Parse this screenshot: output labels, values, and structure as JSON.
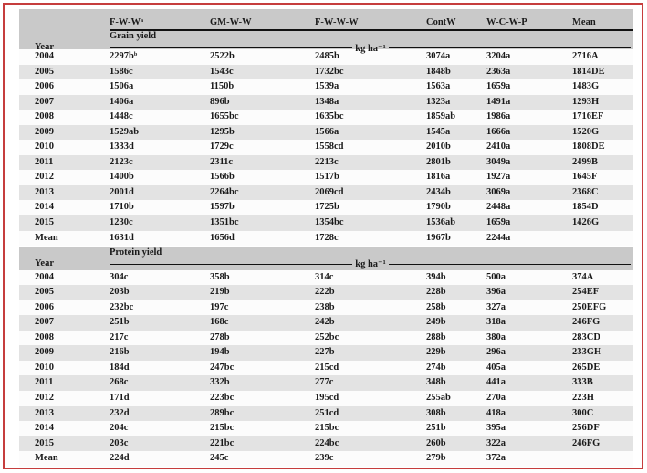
{
  "colors": {
    "frame_border": "#c63d3d",
    "header_band": "#c9c9c9",
    "stripe_gray": "#e3e3e3",
    "text": "#1a1a1a"
  },
  "table": {
    "year_label": "Year",
    "unit_label": "kg ha⁻¹",
    "header": {
      "treatments": [
        "F-W-Wᵃ",
        "GM-W-W",
        "F-W-W-W",
        "ContW",
        "W-C-W-P",
        "Mean"
      ]
    },
    "sections": [
      {
        "title": "Grain yield",
        "rows": [
          {
            "year": "2004",
            "values": [
              "2297bᵇ",
              "2522b",
              "2485b",
              "3074a",
              "3204a",
              "2716A"
            ]
          },
          {
            "year": "2005",
            "values": [
              "1586c",
              "1543c",
              "1732bc",
              "1848b",
              "2363a",
              "1814DE"
            ]
          },
          {
            "year": "2006",
            "values": [
              "1506a",
              "1150b",
              "1539a",
              "1563a",
              "1659a",
              "1483G"
            ]
          },
          {
            "year": "2007",
            "values": [
              "1406a",
              "896b",
              "1348a",
              "1323a",
              "1491a",
              "1293H"
            ]
          },
          {
            "year": "2008",
            "values": [
              "1448c",
              "1655bc",
              "1635bc",
              "1859ab",
              "1986a",
              "1716EF"
            ]
          },
          {
            "year": "2009",
            "values": [
              "1529ab",
              "1295b",
              "1566a",
              "1545a",
              "1666a",
              "1520G"
            ]
          },
          {
            "year": "2010",
            "values": [
              "1333d",
              "1729c",
              "1558cd",
              "2010b",
              "2410a",
              "1808DE"
            ]
          },
          {
            "year": "2011",
            "values": [
              "2123c",
              "2311c",
              "2213c",
              "2801b",
              "3049a",
              "2499B"
            ]
          },
          {
            "year": "2012",
            "values": [
              "1400b",
              "1566b",
              "1517b",
              "1816a",
              "1927a",
              "1645F"
            ]
          },
          {
            "year": "2013",
            "values": [
              "2001d",
              "2264bc",
              "2069cd",
              "2434b",
              "3069a",
              "2368C"
            ]
          },
          {
            "year": "2014",
            "values": [
              "1710b",
              "1597b",
              "1725b",
              "1790b",
              "2448a",
              "1854D"
            ]
          },
          {
            "year": "2015",
            "values": [
              "1230c",
              "1351bc",
              "1354bc",
              "1536ab",
              "1659a",
              "1426G"
            ]
          },
          {
            "year": "Mean",
            "values": [
              "1631d",
              "1656d",
              "1728c",
              "1967b",
              "2244a",
              ""
            ]
          }
        ]
      },
      {
        "title": "Protein yield",
        "rows": [
          {
            "year": "2004",
            "values": [
              "304c",
              "358b",
              "314c",
              "394b",
              "500a",
              "374A"
            ]
          },
          {
            "year": "2005",
            "values": [
              "203b",
              "219b",
              "222b",
              "228b",
              "396a",
              "254EF"
            ]
          },
          {
            "year": "2006",
            "values": [
              "232bc",
              "197c",
              "238b",
              "258b",
              "327a",
              "250EFG"
            ]
          },
          {
            "year": "2007",
            "values": [
              "251b",
              "168c",
              "242b",
              "249b",
              "318a",
              "246FG"
            ]
          },
          {
            "year": "2008",
            "values": [
              "217c",
              "278b",
              "252bc",
              "288b",
              "380a",
              "283CD"
            ]
          },
          {
            "year": "2009",
            "values": [
              "216b",
              "194b",
              "227b",
              "229b",
              "296a",
              "233GH"
            ]
          },
          {
            "year": "2010",
            "values": [
              "184d",
              "247bc",
              "215cd",
              "274b",
              "405a",
              "265DE"
            ]
          },
          {
            "year": "2011",
            "values": [
              "268c",
              "332b",
              "277c",
              "348b",
              "441a",
              "333B"
            ]
          },
          {
            "year": "2012",
            "values": [
              "171d",
              "223bc",
              "195cd",
              "255ab",
              "270a",
              "223H"
            ]
          },
          {
            "year": "2013",
            "values": [
              "232d",
              "289bc",
              "251cd",
              "308b",
              "418a",
              "300C"
            ]
          },
          {
            "year": "2014",
            "values": [
              "204c",
              "215bc",
              "215bc",
              "251b",
              "395a",
              "256DF"
            ]
          },
          {
            "year": "2015",
            "values": [
              "203c",
              "221bc",
              "224bc",
              "260b",
              "322a",
              "246FG"
            ]
          },
          {
            "year": "Mean",
            "values": [
              "224d",
              "245c",
              "239c",
              "279b",
              "372a",
              ""
            ]
          }
        ]
      }
    ]
  }
}
